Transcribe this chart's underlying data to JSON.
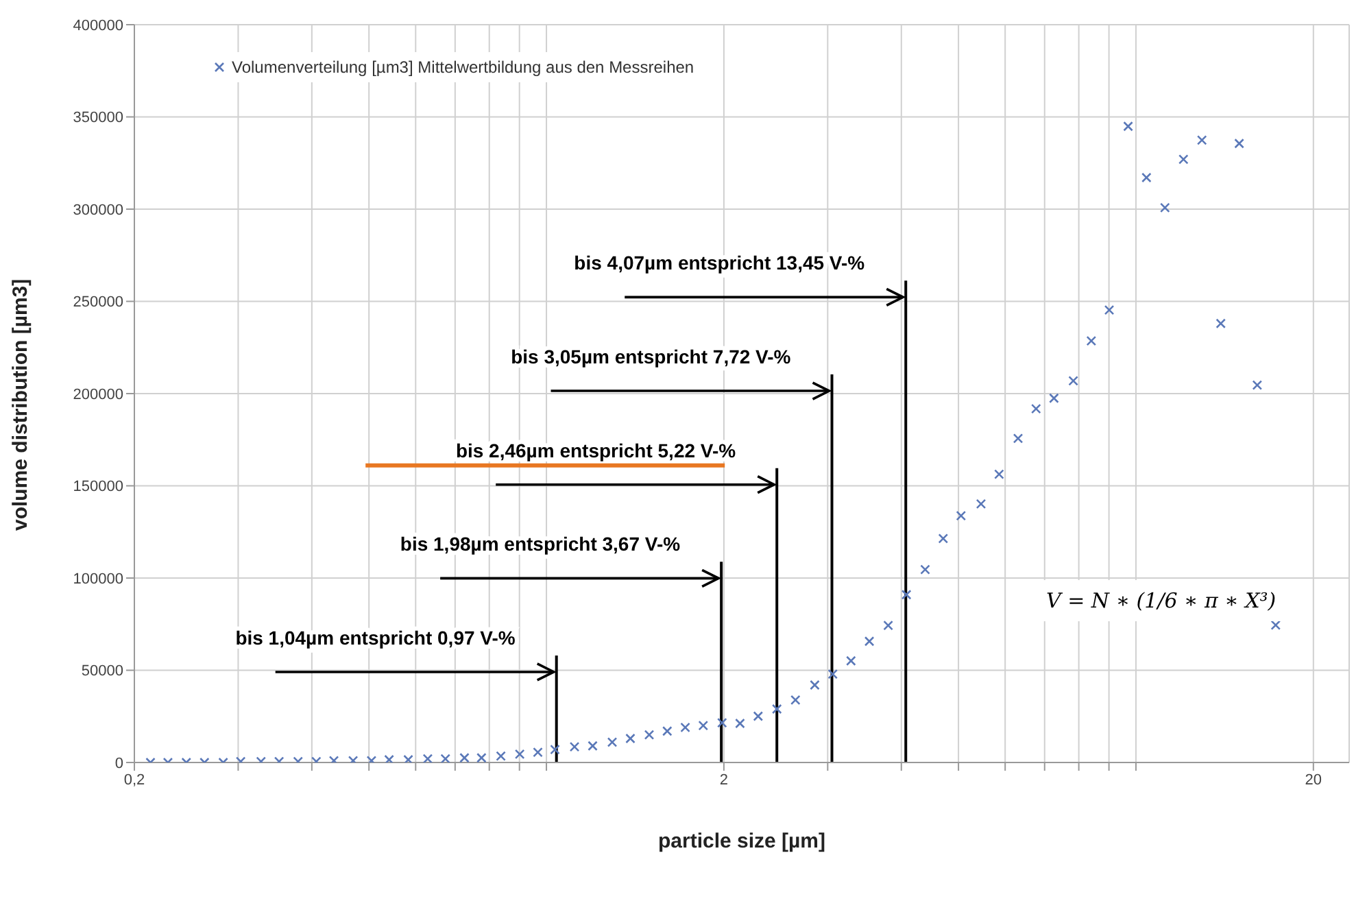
{
  "chart_data": {
    "type": "scatter",
    "xlabel": "particle size [µm]",
    "ylabel": "volume distribution [µm3]",
    "log": "x",
    "grid": true,
    "legend": "top",
    "marker": "cross",
    "xlim": [
      0.2,
      23
    ],
    "xticks": [
      {
        "value": 0.2,
        "label": "0,2"
      },
      {
        "value": 0.3,
        "label": null
      },
      {
        "value": 0.4,
        "label": null
      },
      {
        "value": 0.5,
        "label": null
      },
      {
        "value": 0.6,
        "label": null
      },
      {
        "value": 0.7,
        "label": null
      },
      {
        "value": 0.8,
        "label": null
      },
      {
        "value": 0.9,
        "label": null
      },
      {
        "value": 1,
        "label": null
      },
      {
        "value": 2,
        "label": "2"
      },
      {
        "value": 3,
        "label": null
      },
      {
        "value": 4,
        "label": null
      },
      {
        "value": 5,
        "label": null
      },
      {
        "value": 6,
        "label": null
      },
      {
        "value": 7,
        "label": null
      },
      {
        "value": 8,
        "label": null
      },
      {
        "value": 9,
        "label": null
      },
      {
        "value": 10,
        "label": null
      },
      {
        "value": 20,
        "label": "20"
      }
    ],
    "ylim": [
      0,
      400000
    ],
    "yticks": [
      0,
      50000,
      100000,
      150000,
      200000,
      250000,
      300000,
      350000,
      400000
    ],
    "x": [
      0.213,
      0.228,
      0.245,
      0.263,
      0.283,
      0.303,
      0.328,
      0.352,
      0.379,
      0.407,
      0.436,
      0.47,
      0.505,
      0.541,
      0.583,
      0.629,
      0.674,
      0.726,
      0.776,
      0.837,
      0.901,
      0.967,
      1.034,
      1.116,
      1.198,
      1.293,
      1.388,
      1.494,
      1.603,
      1.72,
      1.845,
      1.986,
      2.13,
      2.286,
      2.46,
      2.645,
      2.852,
      3.06,
      3.286,
      3.53,
      3.8,
      4.08,
      4.39,
      4.71,
      5.05,
      5.46,
      5.86,
      6.31,
      6.77,
      7.26,
      7.83,
      8.4,
      9.01,
      9.7,
      10.42,
      11.2,
      12.04,
      12.94,
      13.93,
      14.97,
      16.06,
      17.26
    ],
    "series": [
      {
        "name": "Volumenverteilung [µm3] Mittelwertbildung aus den Messreihen",
        "color": "#5a78b8",
        "values": [
          0,
          0,
          0,
          0,
          0,
          500,
          500,
          500,
          500,
          500,
          1000,
          1000,
          1000,
          1500,
          1500,
          2000,
          2000,
          2500,
          2500,
          3500,
          4500,
          5500,
          7000,
          8500,
          9000,
          11000,
          13000,
          15000,
          17000,
          19000,
          20000,
          21500,
          21200,
          25100,
          29000,
          33900,
          42000,
          47900,
          55100,
          65700,
          74300,
          91000,
          104600,
          121400,
          133800,
          140200,
          156300,
          175700,
          191800,
          197500,
          206900,
          228600,
          245300,
          344900,
          317100,
          300800,
          327000,
          337400,
          238000,
          335600,
          204600,
          74500
        ]
      }
    ],
    "ref_lines": [
      {
        "axis": "x",
        "value": 1.04,
        "label": "bis 1,04µm entspricht 0,97 V-%",
        "color": "#000000"
      },
      {
        "axis": "x",
        "value": 1.98,
        "label": "bis 1,98µm entspricht 3,67 V-%",
        "color": "#000000"
      },
      {
        "axis": "x",
        "value": 2.46,
        "label": "bis 2,46µm entspricht 5,22 V-%",
        "color": "#000000"
      },
      {
        "axis": "x",
        "value": 3.05,
        "label": "bis 3,05µm entspricht 7,72 V-%",
        "color": "#000000"
      },
      {
        "axis": "x",
        "value": 4.07,
        "label": "bis 4,07µm entspricht 13,45 V-%",
        "color": "#000000"
      }
    ],
    "annotations": [
      "V = N ∗ (1/6 ∗ π ∗ X³)"
    ]
  }
}
